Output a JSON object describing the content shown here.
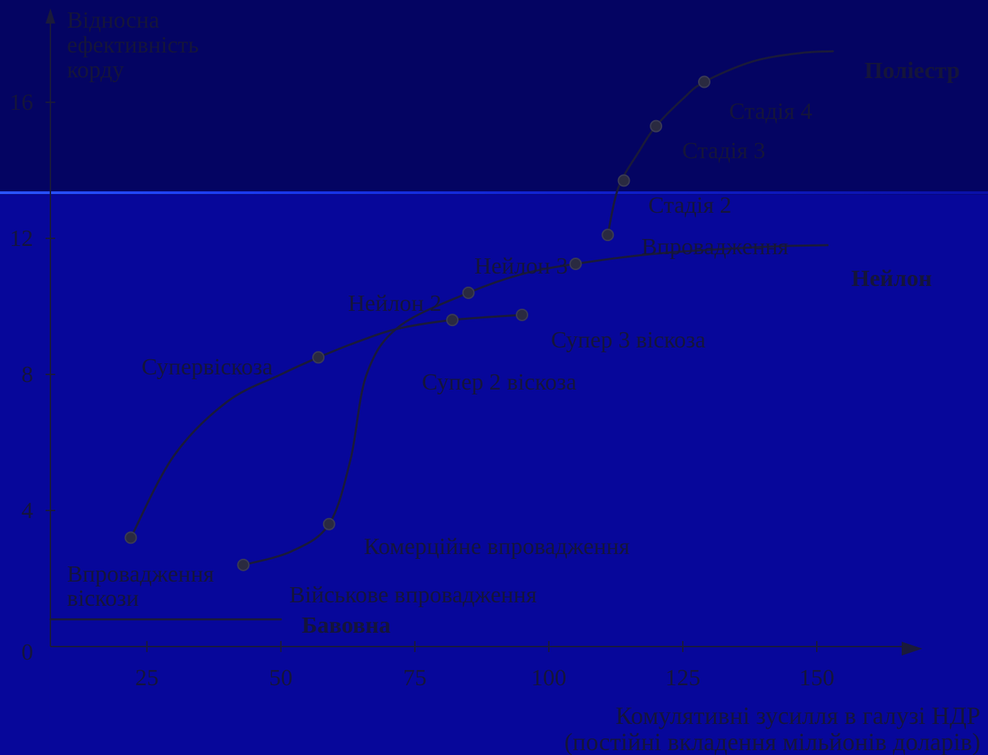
{
  "chart_data": {
    "type": "line",
    "ylabel": [
      "Відносна",
      "ефективність",
      "корду"
    ],
    "xlabel": [
      "Комулятивні зусилля в галузі НДР",
      "(постійні вкладення мільйонів доларів)"
    ],
    "xlim": [
      7,
      167
    ],
    "ylim": [
      0,
      18.5
    ],
    "xticks": [
      25,
      50,
      75,
      100,
      125,
      150
    ],
    "yticks": [
      0,
      4,
      8,
      12,
      16
    ],
    "series": [
      {
        "name": "Бавовна",
        "curve": [
          [
            7,
            0.8
          ],
          [
            50,
            0.8
          ]
        ],
        "points": []
      },
      {
        "name": "",
        "curve": [
          [
            22,
            3.2
          ],
          [
            30,
            5.6
          ],
          [
            40,
            7.2
          ],
          [
            50,
            8.0
          ],
          [
            57,
            8.5
          ],
          [
            65,
            9.0
          ],
          [
            72,
            9.35
          ],
          [
            82,
            9.6
          ],
          [
            95,
            9.75
          ]
        ],
        "points": [
          {
            "label": "Впровадження віскози",
            "x": 22,
            "y": 3.2
          },
          {
            "label": "Супервіскоза",
            "x": 57,
            "y": 8.5
          },
          {
            "label": "Супер 2 віскоза",
            "x": 82,
            "y": 9.6
          },
          {
            "label": "Супер 3 віскоза",
            "x": 95,
            "y": 9.75
          }
        ]
      },
      {
        "name": "Нейлон",
        "curve": [
          [
            43,
            2.4
          ],
          [
            52,
            2.8
          ],
          [
            59,
            3.6
          ],
          [
            63,
            5.5
          ],
          [
            66,
            8.0
          ],
          [
            72,
            9.4
          ],
          [
            85,
            10.4
          ],
          [
            95,
            10.95
          ],
          [
            105,
            11.25
          ],
          [
            120,
            11.55
          ],
          [
            140,
            11.75
          ],
          [
            152,
            11.8
          ]
        ],
        "points": [
          {
            "label": "Військове впровадження",
            "x": 43,
            "y": 2.4
          },
          {
            "label": "Комерційне впровадження",
            "x": 59,
            "y": 3.6
          },
          {
            "label": "Нейлон 2",
            "x": 85,
            "y": 10.4
          },
          {
            "label": "Нейлон 3",
            "x": 105,
            "y": 11.25
          }
        ]
      },
      {
        "name": "Поліестр",
        "curve": [
          [
            111,
            12.1
          ],
          [
            113,
            13.5
          ],
          [
            117,
            14.6
          ],
          [
            120,
            15.3
          ],
          [
            125,
            16.1
          ],
          [
            129,
            16.6
          ],
          [
            138,
            17.2
          ],
          [
            147,
            17.45
          ],
          [
            153,
            17.5
          ]
        ],
        "points": [
          {
            "label": "Впровадження",
            "x": 111,
            "y": 12.1
          },
          {
            "label": "Стадія 2",
            "x": 114,
            "y": 13.7
          },
          {
            "label": "Стадія 3",
            "x": 120,
            "y": 15.3
          },
          {
            "label": "Стадія 4",
            "x": 129,
            "y": 16.6
          }
        ]
      }
    ]
  }
}
